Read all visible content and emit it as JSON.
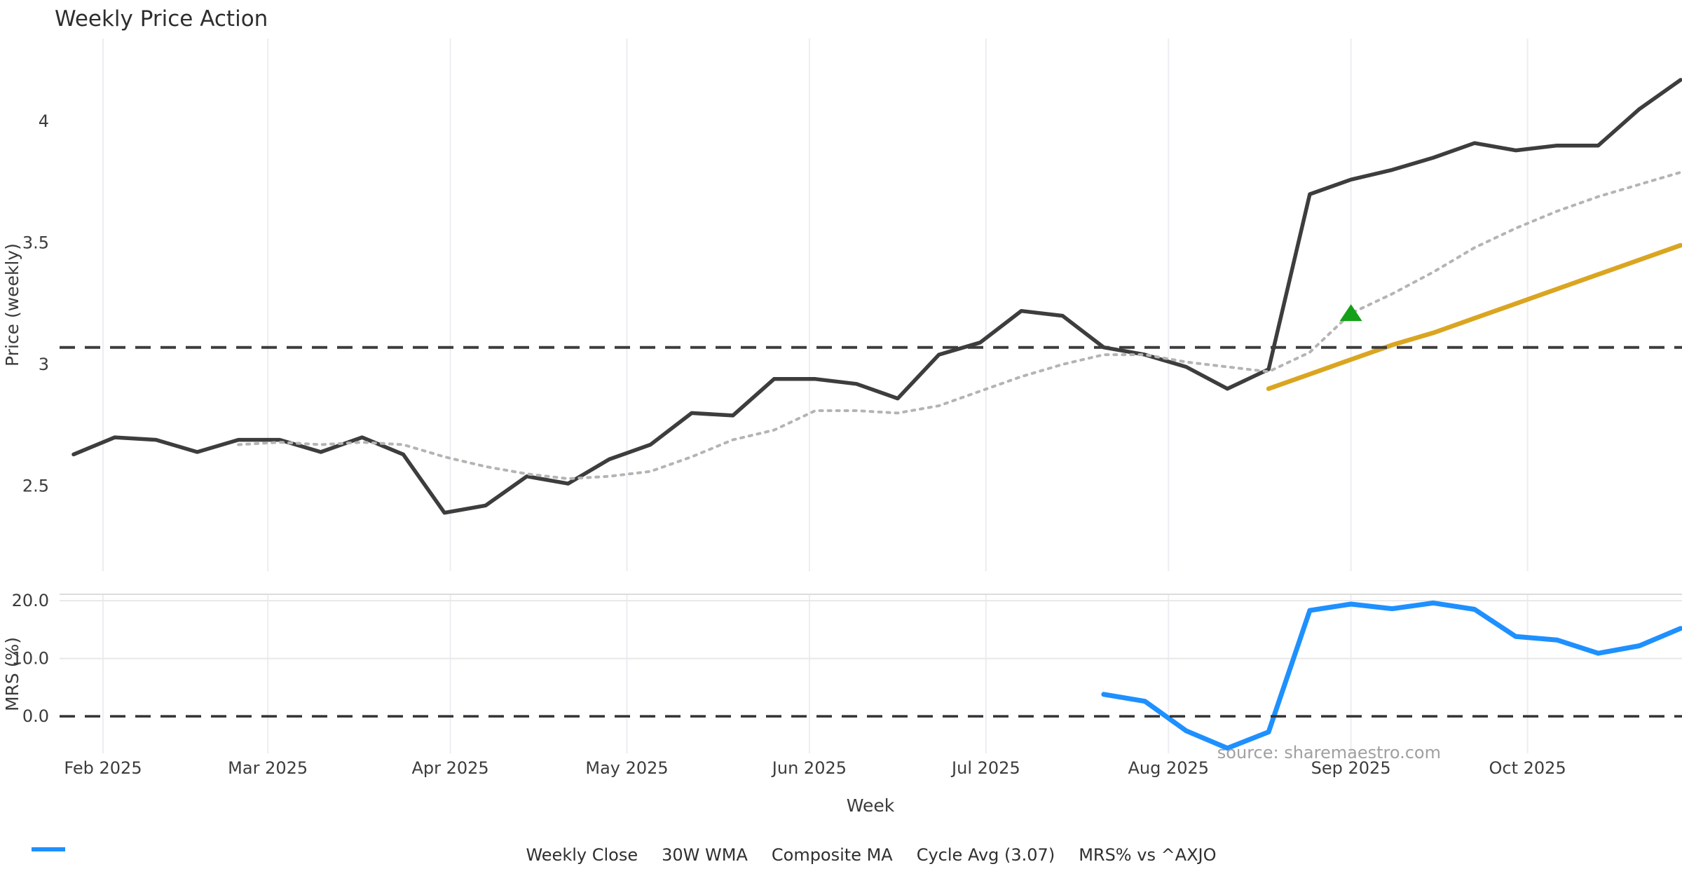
{
  "title": "Weekly Price Action",
  "source_note": "source: sharemaestro.com",
  "legend": {
    "items": [
      {
        "label": "Weekly Close",
        "color": "#3d3d3d",
        "style": "solid",
        "swatch": "line"
      },
      {
        "label": "30W WMA",
        "color": "#DAA520",
        "style": "solid",
        "swatch": "line"
      },
      {
        "label": "Composite MA",
        "color": "#b4b4b4",
        "style": "dotted",
        "swatch": "line"
      },
      {
        "label": "Cycle Avg (3.07)",
        "color": "#3d3d3d",
        "style": "dashed",
        "swatch": "line"
      },
      {
        "label": "MRS% vs ^AXJO",
        "color": "#1E90FF",
        "style": "solid",
        "swatch": "line"
      }
    ]
  },
  "chart_data": {
    "type": "line",
    "title": "Weekly Price Action",
    "xlabel": "Week",
    "x_tick_labels": [
      "Feb 2025",
      "Mar 2025",
      "Apr 2025",
      "May 2025",
      "Jun 2025",
      "Jul 2025",
      "Aug 2025",
      "Sep 2025",
      "Oct 2025"
    ],
    "x_tick_dates": [
      "2025-02-01",
      "2025-03-01",
      "2025-04-01",
      "2025-05-01",
      "2025-06-01",
      "2025-07-01",
      "2025-08-01",
      "2025-09-01",
      "2025-10-01"
    ],
    "frequency": "weekly",
    "panels": [
      {
        "name": "price-panel",
        "ylabel": "Price (weekly)",
        "ylim": [
          2.15,
          4.34
        ],
        "ytick_values": [
          2.5,
          3,
          3.5,
          4
        ],
        "ytick_labels": [
          "2.5",
          "3",
          "3.5",
          "4"
        ],
        "grid": "vertical",
        "series": [
          {
            "name": "Weekly Close",
            "kind": "line",
            "style": "solid",
            "color": "#3d3d3d",
            "width": 5.5,
            "start_date": "2025-01-27",
            "interval_days": 7,
            "values": [
              2.63,
              2.7,
              2.69,
              2.64,
              2.69,
              2.69,
              2.64,
              2.7,
              2.63,
              2.39,
              2.42,
              2.54,
              2.51,
              2.61,
              2.67,
              2.8,
              2.79,
              2.94,
              2.94,
              2.92,
              2.86,
              3.04,
              3.09,
              3.22,
              3.2,
              3.07,
              3.04,
              2.99,
              2.9,
              2.98,
              3.7,
              3.76,
              3.8,
              3.85,
              3.91,
              3.88,
              3.9,
              3.9,
              4.05,
              4.17
            ]
          },
          {
            "name": "Composite MA",
            "kind": "line",
            "style": "dotted",
            "color": "#b4b4b4",
            "width": 4,
            "start_date": "2025-02-24",
            "interval_days": 7,
            "values": [
              2.67,
              2.68,
              2.67,
              2.68,
              2.67,
              2.62,
              2.58,
              2.55,
              2.53,
              2.54,
              2.56,
              2.62,
              2.69,
              2.73,
              2.81,
              2.81,
              2.8,
              2.83,
              2.89,
              2.95,
              3.0,
              3.04,
              3.04,
              3.01,
              2.99,
              2.97,
              3.05,
              3.21,
              3.29,
              3.38,
              3.48,
              3.56,
              3.63,
              3.69,
              3.74,
              3.79
            ]
          },
          {
            "name": "30W WMA",
            "kind": "line",
            "style": "solid",
            "color": "#DAA520",
            "width": 6.5,
            "start_date": "2025-08-18",
            "interval_days": 7,
            "values": [
              2.9,
              2.96,
              3.02,
              3.08,
              3.13,
              3.19,
              3.25,
              3.31,
              3.37,
              3.43,
              3.49
            ]
          },
          {
            "name": "Cycle Avg (3.07)",
            "kind": "hline",
            "style": "dashed",
            "color": "#3d3d3d",
            "width": 4,
            "value": 3.07
          }
        ],
        "markers": [
          {
            "shape": "triangle-up",
            "color": "#15a019",
            "date": "2025-09-01",
            "value": 3.21,
            "meaning": "signal on Composite MA"
          }
        ]
      },
      {
        "name": "mrs-panel",
        "ylabel": "MRS (%)",
        "ylim": [
          -6.4,
          21.1
        ],
        "ytick_values": [
          0,
          10,
          20
        ],
        "ytick_labels": [
          "0.0",
          "10.0",
          "20.0"
        ],
        "grid": "both",
        "series": [
          {
            "name": "MRS% vs ^AXJO",
            "kind": "line",
            "style": "solid",
            "color": "#1E90FF",
            "width": 7,
            "start_date": "2025-07-21",
            "interval_days": 7,
            "values": [
              3.8,
              2.6,
              -2.5,
              -5.5,
              -2.7,
              18.3,
              19.4,
              18.6,
              19.6,
              18.5,
              13.8,
              13.2,
              10.9,
              12.2,
              15.2
            ]
          },
          {
            "name": "zero-line",
            "kind": "hline",
            "style": "dashed",
            "color": "#333333",
            "width": 3.5,
            "value": 0
          }
        ]
      }
    ]
  }
}
